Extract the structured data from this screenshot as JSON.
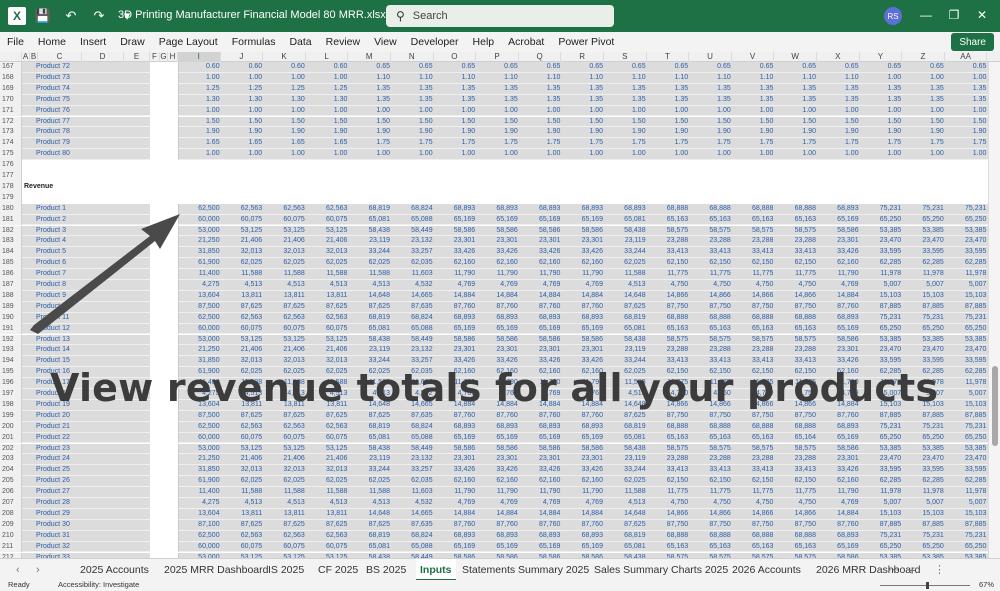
{
  "app": {
    "title": "3D Printing Manufacturer Financial Model 80 MRR.xlsx  -  Excel",
    "logo_letter": "X",
    "search_placeholder": "Search",
    "user_initials": "RS",
    "accent_color": "#1e7145"
  },
  "ribbon": {
    "tabs": [
      "File",
      "Home",
      "Insert",
      "Draw",
      "Page Layout",
      "Formulas",
      "Data",
      "Review",
      "View",
      "Developer",
      "Help",
      "Acrobat",
      "Power Pivot"
    ],
    "share_label": "Share"
  },
  "columns": [
    "A",
    "B",
    "C",
    "D",
    "E",
    "F",
    "G",
    "H",
    "I",
    "J",
    "K",
    "L",
    "M",
    "N",
    "O",
    "P",
    "Q",
    "R",
    "S",
    "T",
    "U",
    "V",
    "W",
    "X",
    "Y",
    "Z",
    "AA"
  ],
  "overlay": {
    "text": "View revenue totals for all your products"
  },
  "factor_rows": [
    {
      "row": "167",
      "label": "Product 72",
      "values": [
        "0.60",
        "0.60",
        "0.60",
        "0.60",
        "0.65",
        "0.65",
        "0.65",
        "0.65",
        "0.65",
        "0.65",
        "0.65",
        "0.65",
        "0.65",
        "0.65",
        "0.65",
        "0.65",
        "0.65",
        "0.65",
        "0.65"
      ]
    },
    {
      "row": "168",
      "label": "Product 73",
      "values": [
        "1.00",
        "1.00",
        "1.00",
        "1.00",
        "1.10",
        "1.10",
        "1.10",
        "1.10",
        "1.10",
        "1.10",
        "1.10",
        "1.10",
        "1.10",
        "1.10",
        "1.10",
        "1.10",
        "1.00",
        "1.00",
        "1.00"
      ]
    },
    {
      "row": "169",
      "label": "Product 74",
      "values": [
        "1.25",
        "1.25",
        "1.25",
        "1.25",
        "1.35",
        "1.35",
        "1.35",
        "1.35",
        "1.35",
        "1.35",
        "1.35",
        "1.35",
        "1.35",
        "1.35",
        "1.35",
        "1.35",
        "1.35",
        "1.35",
        "1.35"
      ]
    },
    {
      "row": "170",
      "label": "Product 75",
      "values": [
        "1.30",
        "1.30",
        "1.30",
        "1.30",
        "1.35",
        "1.35",
        "1.35",
        "1.35",
        "1.35",
        "1.35",
        "1.35",
        "1.35",
        "1.35",
        "1.35",
        "1.35",
        "1.35",
        "1.35",
        "1.35",
        "1.35"
      ]
    },
    {
      "row": "171",
      "label": "Product 76",
      "values": [
        "1.00",
        "1.00",
        "1.00",
        "1.00",
        "1.00",
        "1.00",
        "1.00",
        "1.00",
        "1.00",
        "1.00",
        "1.00",
        "1.00",
        "1.00",
        "1.00",
        "1.00",
        "1.00",
        "1.00",
        "1.00",
        "1.00"
      ]
    },
    {
      "row": "172",
      "label": "Product 77",
      "values": [
        "1.50",
        "1.50",
        "1.50",
        "1.50",
        "1.50",
        "1.50",
        "1.50",
        "1.50",
        "1.50",
        "1.50",
        "1.50",
        "1.50",
        "1.50",
        "1.50",
        "1.50",
        "1.50",
        "1.50",
        "1.50",
        "1.50"
      ]
    },
    {
      "row": "173",
      "label": "Product 78",
      "values": [
        "1.90",
        "1.90",
        "1.90",
        "1.90",
        "1.90",
        "1.90",
        "1.90",
        "1.90",
        "1.90",
        "1.90",
        "1.90",
        "1.90",
        "1.90",
        "1.90",
        "1.90",
        "1.90",
        "1.90",
        "1.90",
        "1.90"
      ]
    },
    {
      "row": "174",
      "label": "Product 79",
      "values": [
        "1.65",
        "1.65",
        "1.65",
        "1.65",
        "1.75",
        "1.75",
        "1.75",
        "1.75",
        "1.75",
        "1.75",
        "1.75",
        "1.75",
        "1.75",
        "1.75",
        "1.75",
        "1.75",
        "1.75",
        "1.75",
        "1.75"
      ]
    },
    {
      "row": "175",
      "label": "Product 80",
      "values": [
        "1.00",
        "1.00",
        "1.00",
        "1.00",
        "1.00",
        "1.00",
        "1.00",
        "1.00",
        "1.00",
        "1.00",
        "1.00",
        "1.00",
        "1.00",
        "1.00",
        "1.00",
        "1.00",
        "1.00",
        "1.00",
        "1.00"
      ]
    }
  ],
  "empty_rows": [
    "176",
    "177",
    "179"
  ],
  "section": {
    "row": "178",
    "label": "Revenue"
  },
  "revenue_rows": [
    {
      "row": "180",
      "label": "Product 1",
      "values": [
        "62,500",
        "62,563",
        "62,563",
        "62,563",
        "68,819",
        "68,824",
        "68,893",
        "68,893",
        "68,893",
        "68,893",
        "68,893",
        "68,888",
        "68,888",
        "68,888",
        "68,888",
        "68,893",
        "75,231",
        "75,231",
        "75,231"
      ]
    },
    {
      "row": "181",
      "label": "Product 2",
      "values": [
        "60,000",
        "60,075",
        "60,075",
        "60,075",
        "65,081",
        "65,088",
        "65,169",
        "65,169",
        "65,169",
        "65,169",
        "65,081",
        "65,163",
        "65,163",
        "65,163",
        "65,163",
        "65,169",
        "65,250",
        "65,250",
        "65,250"
      ]
    },
    {
      "row": "182",
      "label": "Product 3",
      "values": [
        "53,000",
        "53,125",
        "53,125",
        "53,125",
        "58,438",
        "58,449",
        "58,586",
        "58,586",
        "58,586",
        "58,586",
        "58,438",
        "58,575",
        "58,575",
        "58,575",
        "58,575",
        "58,586",
        "53,385",
        "53,385",
        "53,385"
      ]
    },
    {
      "row": "183",
      "label": "Product 4",
      "values": [
        "21,250",
        "21,406",
        "21,406",
        "21,406",
        "23,119",
        "23,132",
        "23,301",
        "23,301",
        "23,301",
        "23,301",
        "23,119",
        "23,288",
        "23,288",
        "23,288",
        "23,288",
        "23,301",
        "23,470",
        "23,470",
        "23,470"
      ]
    },
    {
      "row": "184",
      "label": "Product 5",
      "values": [
        "31,850",
        "32,013",
        "32,013",
        "32,013",
        "33,244",
        "33,257",
        "33,426",
        "33,426",
        "33,426",
        "33,426",
        "33,244",
        "33,413",
        "33,413",
        "33,413",
        "33,413",
        "33,426",
        "33,595",
        "33,595",
        "33,595"
      ]
    },
    {
      "row": "185",
      "label": "Product 6",
      "values": [
        "61,900",
        "62,025",
        "62,025",
        "62,025",
        "62,025",
        "62,035",
        "62,160",
        "62,160",
        "62,160",
        "62,160",
        "62,025",
        "62,150",
        "62,150",
        "62,150",
        "62,150",
        "62,160",
        "62,285",
        "62,285",
        "62,285"
      ]
    },
    {
      "row": "186",
      "label": "Product 7",
      "values": [
        "11,400",
        "11,588",
        "11,588",
        "11,588",
        "11,588",
        "11,603",
        "11,790",
        "11,790",
        "11,790",
        "11,790",
        "11,588",
        "11,775",
        "11,775",
        "11,775",
        "11,775",
        "11,790",
        "11,978",
        "11,978",
        "11,978"
      ]
    },
    {
      "row": "187",
      "label": "Product 8",
      "values": [
        "4,275",
        "4,513",
        "4,513",
        "4,513",
        "4,513",
        "4,532",
        "4,769",
        "4,769",
        "4,769",
        "4,769",
        "4,513",
        "4,750",
        "4,750",
        "4,750",
        "4,750",
        "4,769",
        "5,007",
        "5,007",
        "5,007"
      ]
    },
    {
      "row": "188",
      "label": "Product 9",
      "values": [
        "13,604",
        "13,811",
        "13,811",
        "13,811",
        "14,648",
        "14,665",
        "14,884",
        "14,884",
        "14,884",
        "14,884",
        "14,648",
        "14,866",
        "14,866",
        "14,866",
        "14,866",
        "14,884",
        "15,103",
        "15,103",
        "15,103"
      ]
    },
    {
      "row": "189",
      "label": "Product 10",
      "values": [
        "87,500",
        "87,625",
        "87,625",
        "87,625",
        "87,625",
        "87,635",
        "87,760",
        "87,760",
        "87,760",
        "87,760",
        "87,625",
        "87,750",
        "87,750",
        "87,750",
        "87,750",
        "87,760",
        "87,885",
        "87,885",
        "87,885"
      ]
    },
    {
      "row": "190",
      "label": "Product 11",
      "values": [
        "62,500",
        "62,563",
        "62,563",
        "62,563",
        "68,819",
        "68,824",
        "68,893",
        "68,893",
        "68,893",
        "68,893",
        "68,819",
        "68,888",
        "68,888",
        "68,888",
        "68,888",
        "68,893",
        "75,231",
        "75,231",
        "75,231"
      ]
    },
    {
      "row": "191",
      "label": "Product 12",
      "values": [
        "60,000",
        "60,075",
        "60,075",
        "60,075",
        "65,081",
        "65,088",
        "65,169",
        "65,169",
        "65,169",
        "65,169",
        "65,081",
        "65,163",
        "65,163",
        "65,163",
        "65,163",
        "65,169",
        "65,250",
        "65,250",
        "65,250"
      ]
    },
    {
      "row": "192",
      "label": "Product 13",
      "values": [
        "53,000",
        "53,125",
        "53,125",
        "53,125",
        "58,438",
        "58,449",
        "58,586",
        "58,586",
        "58,586",
        "58,586",
        "58,438",
        "58,575",
        "58,575",
        "58,575",
        "58,575",
        "58,586",
        "53,385",
        "53,385",
        "53,385"
      ]
    },
    {
      "row": "193",
      "label": "Product 14",
      "values": [
        "21,250",
        "21,406",
        "21,406",
        "21,406",
        "23,119",
        "23,132",
        "23,301",
        "23,301",
        "23,301",
        "23,301",
        "23,119",
        "23,288",
        "23,288",
        "23,288",
        "23,288",
        "23,301",
        "23,470",
        "23,470",
        "23,470"
      ]
    },
    {
      "row": "194",
      "label": "Product 15",
      "values": [
        "31,850",
        "32,013",
        "32,013",
        "32,013",
        "33,244",
        "33,257",
        "33,426",
        "33,426",
        "33,426",
        "33,426",
        "33,244",
        "33,413",
        "33,413",
        "33,413",
        "33,413",
        "33,426",
        "33,595",
        "33,595",
        "33,595"
      ]
    },
    {
      "row": "195",
      "label": "Product 16",
      "values": [
        "61,900",
        "62,025",
        "62,025",
        "62,025",
        "62,025",
        "62,035",
        "62,160",
        "62,160",
        "62,160",
        "62,160",
        "62,025",
        "62,150",
        "62,150",
        "62,150",
        "62,150",
        "62,160",
        "62,285",
        "62,285",
        "62,285"
      ]
    },
    {
      "row": "196",
      "label": "Product 17",
      "values": [
        "11,400",
        "11,588",
        "11,588",
        "11,588",
        "11,588",
        "11,603",
        "11,790",
        "11,790",
        "11,790",
        "11,790",
        "11,588",
        "11,775",
        "11,775",
        "11,775",
        "11,775",
        "11,790",
        "11,978",
        "11,978",
        "11,978"
      ]
    },
    {
      "row": "197",
      "label": "Product 18",
      "values": [
        "4,275",
        "4,513",
        "4,513",
        "4,513",
        "4,513",
        "4,532",
        "4,769",
        "4,769",
        "4,769",
        "4,769",
        "4,513",
        "4,750",
        "4,750",
        "4,750",
        "4,750",
        "4,769",
        "5,007",
        "5,007",
        "5,007"
      ]
    },
    {
      "row": "198",
      "label": "Product 19",
      "values": [
        "13,604",
        "13,811",
        "13,811",
        "13,811",
        "14,648",
        "14,665",
        "14,884",
        "14,884",
        "14,884",
        "14,884",
        "14,648",
        "14,866",
        "14,866",
        "14,866",
        "14,866",
        "14,884",
        "15,103",
        "15,103",
        "15,103"
      ]
    },
    {
      "row": "199",
      "label": "Product 20",
      "values": [
        "87,500",
        "87,625",
        "87,625",
        "87,625",
        "87,625",
        "87,635",
        "87,760",
        "87,760",
        "87,760",
        "87,760",
        "87,625",
        "87,750",
        "87,750",
        "87,750",
        "87,750",
        "87,760",
        "87,885",
        "87,885",
        "87,885"
      ]
    },
    {
      "row": "200",
      "label": "Product 21",
      "values": [
        "62,500",
        "62,563",
        "62,563",
        "62,563",
        "68,819",
        "68,824",
        "68,893",
        "68,893",
        "68,893",
        "68,893",
        "68,819",
        "68,888",
        "68,888",
        "68,888",
        "68,888",
        "68,893",
        "75,231",
        "75,231",
        "75,231"
      ]
    },
    {
      "row": "201",
      "label": "Product 22",
      "values": [
        "60,000",
        "60,075",
        "60,075",
        "60,075",
        "65,081",
        "65,088",
        "65,169",
        "65,169",
        "65,169",
        "65,169",
        "65,081",
        "65,163",
        "65,163",
        "65,163",
        "65,164",
        "65,169",
        "65,250",
        "65,250",
        "65,250"
      ]
    },
    {
      "row": "202",
      "label": "Product 23",
      "values": [
        "53,000",
        "53,125",
        "53,125",
        "53,125",
        "58,438",
        "58,449",
        "58,586",
        "58,586",
        "58,586",
        "58,586",
        "58,438",
        "58,575",
        "58,575",
        "58,575",
        "58,575",
        "58,586",
        "53,385",
        "53,385",
        "53,385"
      ]
    },
    {
      "row": "203",
      "label": "Product 24",
      "values": [
        "21,250",
        "21,406",
        "21,406",
        "21,406",
        "23,119",
        "23,132",
        "23,301",
        "23,301",
        "23,301",
        "23,301",
        "23,119",
        "23,288",
        "23,288",
        "23,288",
        "23,288",
        "23,301",
        "23,470",
        "23,470",
        "23,470"
      ]
    },
    {
      "row": "204",
      "label": "Product 25",
      "values": [
        "31,850",
        "32,013",
        "32,013",
        "32,013",
        "33,244",
        "33,257",
        "33,426",
        "33,426",
        "33,426",
        "33,426",
        "33,244",
        "33,413",
        "33,413",
        "33,413",
        "33,413",
        "33,426",
        "33,595",
        "33,595",
        "33,595"
      ]
    },
    {
      "row": "205",
      "label": "Product 26",
      "values": [
        "61,900",
        "62,025",
        "62,025",
        "62,025",
        "62,025",
        "62,035",
        "62,160",
        "62,160",
        "62,160",
        "62,160",
        "62,025",
        "62,150",
        "62,150",
        "62,150",
        "62,150",
        "62,160",
        "62,285",
        "62,285",
        "62,285"
      ]
    },
    {
      "row": "206",
      "label": "Product 27",
      "values": [
        "11,400",
        "11,588",
        "11,588",
        "11,588",
        "11,588",
        "11,603",
        "11,790",
        "11,790",
        "11,790",
        "11,790",
        "11,588",
        "11,775",
        "11,775",
        "11,775",
        "11,775",
        "11,790",
        "11,978",
        "11,978",
        "11,978"
      ]
    },
    {
      "row": "207",
      "label": "Product 28",
      "values": [
        "4,275",
        "4,513",
        "4,513",
        "4,513",
        "4,513",
        "4,532",
        "4,769",
        "4,769",
        "4,769",
        "4,769",
        "4,513",
        "4,750",
        "4,750",
        "4,750",
        "4,750",
        "4,769",
        "5,007",
        "5,007",
        "5,007"
      ]
    },
    {
      "row": "208",
      "label": "Product 29",
      "values": [
        "13,604",
        "13,811",
        "13,811",
        "13,811",
        "14,648",
        "14,665",
        "14,884",
        "14,884",
        "14,884",
        "14,884",
        "14,648",
        "14,866",
        "14,866",
        "14,866",
        "14,866",
        "14,884",
        "15,103",
        "15,103",
        "15,103"
      ]
    },
    {
      "row": "209",
      "label": "Product 30",
      "values": [
        "87,100",
        "87,625",
        "87,625",
        "87,625",
        "87,625",
        "87,635",
        "87,760",
        "87,760",
        "87,760",
        "87,760",
        "87,625",
        "87,750",
        "87,750",
        "87,750",
        "87,750",
        "87,760",
        "87,885",
        "87,885",
        "87,885"
      ]
    },
    {
      "row": "210",
      "label": "Product 31",
      "values": [
        "62,500",
        "62,563",
        "62,563",
        "62,563",
        "68,819",
        "68,824",
        "68,893",
        "68,893",
        "68,893",
        "68,893",
        "68,819",
        "68,888",
        "68,888",
        "68,888",
        "68,888",
        "68,893",
        "75,231",
        "75,231",
        "75,231"
      ]
    },
    {
      "row": "211",
      "label": "Product 32",
      "values": [
        "60,000",
        "60,075",
        "60,075",
        "60,075",
        "65,081",
        "65,088",
        "65,169",
        "65,169",
        "65,169",
        "65,169",
        "65,081",
        "65,163",
        "65,163",
        "65,163",
        "65,163",
        "65,169",
        "65,250",
        "65,250",
        "65,250"
      ]
    },
    {
      "row": "212",
      "label": "Product 33",
      "values": [
        "53,000",
        "53,125",
        "53,125",
        "53,125",
        "58,438",
        "58,449",
        "58,586",
        "58,586",
        "58,586",
        "58,586",
        "58,438",
        "58,575",
        "58,575",
        "58,575",
        "58,575",
        "58,586",
        "53,385",
        "53,385",
        "53,385"
      ]
    }
  ],
  "sheet_tabs": [
    "2025 Accounts",
    "2025 MRR Dashboard",
    "IS 2025",
    "CF 2025",
    "BS 2025",
    "Inputs",
    "Statements Summary 2025",
    "Sales Summary Charts 2025",
    "2026 Accounts",
    "2026 MRR Dashboard"
  ],
  "active_sheet": "Inputs",
  "status": {
    "ready": "Ready",
    "accessibility": "Accessibility: Investigate",
    "zoom": "67%"
  }
}
